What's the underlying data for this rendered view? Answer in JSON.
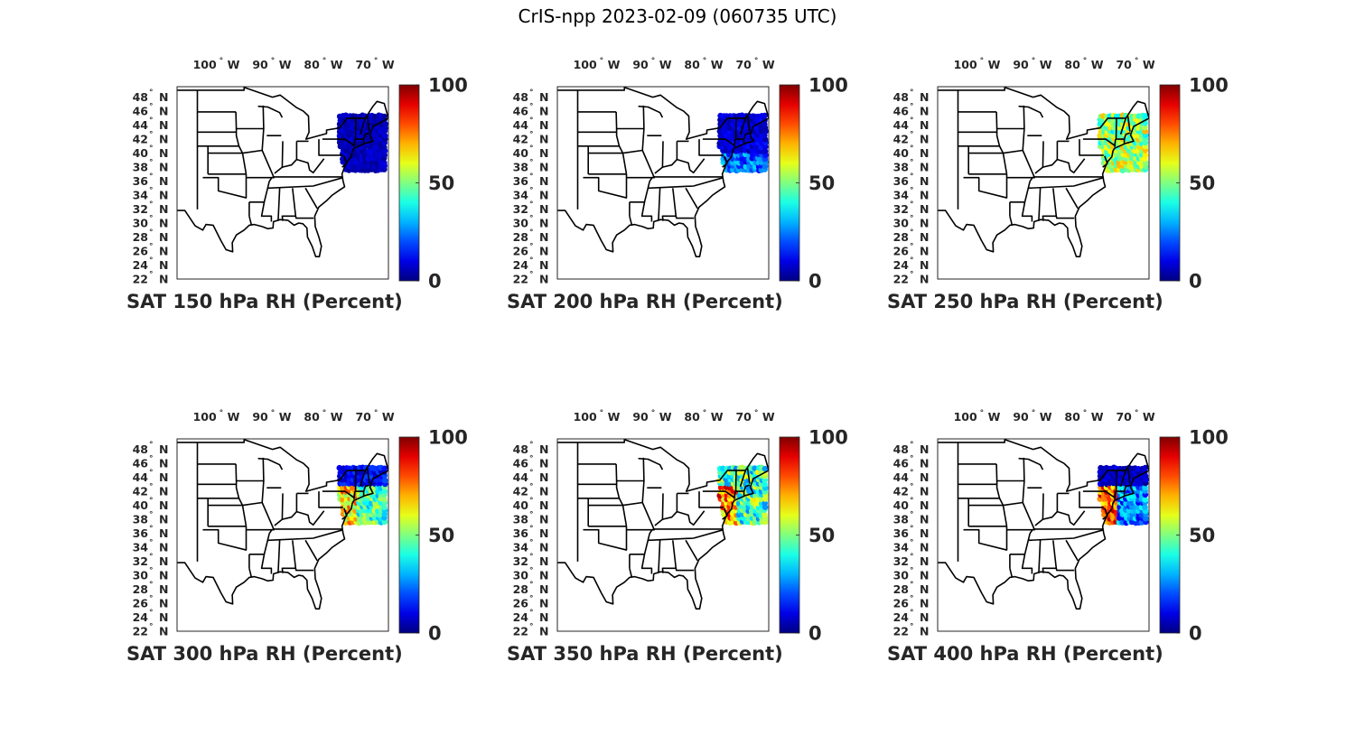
{
  "figure": {
    "title": "CrIS-npp 2023-02-09 (060735 UTC)"
  },
  "axes": {
    "lon_ticks": [
      {
        "deg": "100",
        "dir": "W",
        "value": -100
      },
      {
        "deg": "90",
        "dir": "W",
        "value": -90
      },
      {
        "deg": "80",
        "dir": "W",
        "value": -80
      },
      {
        "deg": "70",
        "dir": "W",
        "value": -70
      }
    ],
    "lat_ticks": [
      {
        "deg": "48",
        "dir": "N",
        "value": 48
      },
      {
        "deg": "46",
        "dir": "N",
        "value": 46
      },
      {
        "deg": "44",
        "dir": "N",
        "value": 44
      },
      {
        "deg": "42",
        "dir": "N",
        "value": 42
      },
      {
        "deg": "40",
        "dir": "N",
        "value": 40
      },
      {
        "deg": "38",
        "dir": "N",
        "value": 38
      },
      {
        "deg": "36",
        "dir": "N",
        "value": 36
      },
      {
        "deg": "34",
        "dir": "N",
        "value": 34
      },
      {
        "deg": "32",
        "dir": "N",
        "value": 32
      },
      {
        "deg": "30",
        "dir": "N",
        "value": 30
      },
      {
        "deg": "28",
        "dir": "N",
        "value": 28
      },
      {
        "deg": "26",
        "dir": "N",
        "value": 26
      },
      {
        "deg": "24",
        "dir": "N",
        "value": 24
      },
      {
        "deg": "22",
        "dir": "N",
        "value": 22
      }
    ],
    "colorbar": {
      "colormap": "jet",
      "ticks": [
        "100",
        "50",
        "0"
      ],
      "range": [
        0,
        100
      ]
    }
  },
  "panels": [
    {
      "label": "SAT 150 hPa RH (Percent)",
      "level": 150,
      "rh": {
        "coverage": "dry",
        "typical_percent": 5
      }
    },
    {
      "label": "SAT 200 hPa RH (Percent)",
      "level": 200,
      "rh": {
        "coverage": "dry-mixed",
        "typical_percent": 10
      }
    },
    {
      "label": "SAT 250 hPa RH (Percent)",
      "level": 250,
      "rh": {
        "coverage": "moist",
        "typical_percent": 50
      }
    },
    {
      "label": "SAT 300 hPa RH (Percent)",
      "level": 300,
      "rh": {
        "coverage": "mixed",
        "typical_percent": 45
      }
    },
    {
      "label": "SAT 350 hPa RH (Percent)",
      "level": 350,
      "rh": {
        "coverage": "mixed-moist",
        "typical_percent": 50
      }
    },
    {
      "label": "SAT 400 hPa RH (Percent)",
      "level": 400,
      "rh": {
        "coverage": "dry-north moist-coast",
        "typical_percent": 20
      }
    }
  ]
}
